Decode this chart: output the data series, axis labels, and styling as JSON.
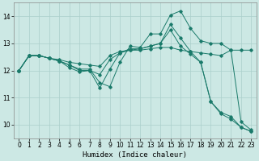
{
  "xlabel": "Humidex (Indice chaleur)",
  "background_color": "#cce8e4",
  "grid_color": "#aacfcb",
  "line_color": "#1a7a6a",
  "xlim": [
    -0.5,
    23.5
  ],
  "ylim": [
    9.5,
    14.5
  ],
  "yticks": [
    10,
    11,
    12,
    13,
    14
  ],
  "xticks": [
    0,
    1,
    2,
    3,
    4,
    5,
    6,
    7,
    8,
    9,
    10,
    11,
    12,
    13,
    14,
    15,
    16,
    17,
    18,
    19,
    20,
    21,
    22,
    23
  ],
  "line1_x": [
    0,
    1,
    2,
    3,
    4,
    5,
    6,
    7,
    8,
    9,
    10,
    11,
    12,
    13,
    14,
    15,
    16,
    17,
    18,
    19,
    20,
    21,
    22,
    23
  ],
  "line1_y": [
    12.0,
    12.55,
    12.55,
    12.45,
    12.4,
    12.3,
    12.25,
    12.2,
    12.15,
    12.55,
    12.7,
    12.75,
    12.75,
    12.8,
    12.85,
    12.85,
    12.75,
    12.7,
    12.65,
    12.6,
    12.55,
    12.75,
    12.75,
    12.75
  ],
  "line2_x": [
    0,
    1,
    2,
    3,
    4,
    5,
    6,
    7,
    8,
    9,
    10,
    11,
    12,
    13,
    14,
    15,
    16,
    17,
    18,
    19,
    20,
    21,
    22,
    23
  ],
  "line2_y": [
    12.0,
    12.55,
    12.55,
    12.45,
    12.35,
    12.2,
    12.05,
    12.05,
    11.55,
    11.4,
    12.3,
    12.9,
    12.85,
    13.35,
    13.35,
    14.05,
    14.2,
    13.55,
    13.1,
    13.0,
    13.0,
    12.75,
    10.1,
    9.8
  ],
  "line3_x": [
    0,
    1,
    2,
    3,
    4,
    5,
    6,
    7,
    8,
    9,
    10,
    11,
    12,
    13,
    14,
    15,
    16,
    17,
    18,
    19,
    20,
    21,
    22,
    23
  ],
  "line3_y": [
    12.0,
    12.55,
    12.55,
    12.45,
    12.35,
    12.2,
    12.0,
    12.0,
    11.35,
    12.05,
    12.65,
    12.75,
    12.8,
    12.9,
    13.0,
    13.7,
    13.2,
    12.7,
    12.3,
    10.85,
    10.4,
    10.2,
    9.9,
    9.75
  ],
  "line4_x": [
    0,
    1,
    2,
    3,
    4,
    5,
    6,
    7,
    8,
    9,
    10,
    11,
    12,
    13,
    14,
    15,
    16,
    17,
    18,
    19,
    20,
    21,
    22,
    23
  ],
  "line4_y": [
    12.0,
    12.55,
    12.55,
    12.45,
    12.35,
    12.1,
    11.95,
    12.0,
    11.85,
    12.4,
    12.65,
    12.8,
    12.8,
    12.9,
    13.0,
    13.5,
    12.9,
    12.6,
    12.3,
    10.85,
    10.45,
    10.3,
    9.9,
    9.75
  ]
}
